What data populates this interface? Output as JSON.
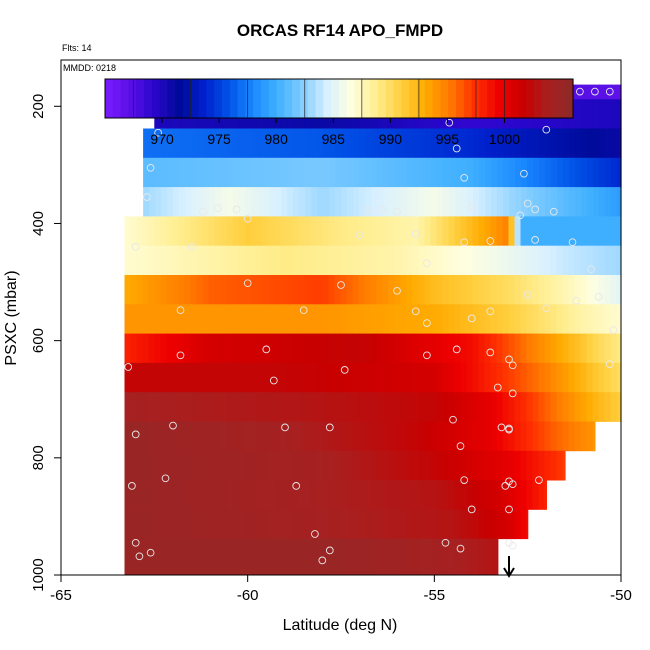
{
  "chart_data": {
    "type": "heatmap",
    "title": "ORCAS RF14 APO_FMPD",
    "annotations": [
      "Flts: 14",
      "MMDD: 0218"
    ],
    "xlabel": "Latitude (deg N)",
    "ylabel": "PSXC (mbar)",
    "xlim": [
      -65,
      -50
    ],
    "ylim": [
      1000,
      100
    ],
    "x_ticks": [
      -65,
      -60,
      -55,
      -50
    ],
    "y_ticks": [
      200,
      400,
      600,
      800,
      1000
    ],
    "colorbar": {
      "min": 965,
      "max": 1006,
      "ticks": [
        970,
        975,
        980,
        985,
        990,
        995,
        1000
      ],
      "colors": [
        "#7a1cff",
        "#5a10e6",
        "#2a06cc",
        "#000a9a",
        "#0020cc",
        "#0050e6",
        "#1a88ff",
        "#40b0ff",
        "#80ccff",
        "#d8f0ff",
        "#ffffe0",
        "#ffee90",
        "#ffd040",
        "#ffaa00",
        "#ff7a00",
        "#ff3000",
        "#ee0000",
        "#c80000",
        "#a82020",
        "#8c2a2a"
      ]
    },
    "rows": [
      {
        "p_top": 163,
        "p_bot": 188,
        "lat_min": -62.0,
        "lat_max": -50.0,
        "values": [
          {
            "lat": -62.0,
            "v": 966
          },
          {
            "lat": -56.0,
            "v": 967
          },
          {
            "lat": -53.5,
            "v": 968
          },
          {
            "lat": -50.0,
            "v": 967
          }
        ]
      },
      {
        "p_top": 188,
        "p_bot": 238,
        "lat_min": -62.5,
        "lat_max": -50.0,
        "values": [
          {
            "lat": -62.5,
            "v": 970
          },
          {
            "lat": -58.0,
            "v": 971
          },
          {
            "lat": -54.0,
            "v": 969
          },
          {
            "lat": -50.0,
            "v": 970
          }
        ]
      },
      {
        "p_top": 238,
        "p_bot": 288,
        "lat_min": -62.8,
        "lat_max": -50.0,
        "values": [
          {
            "lat": -62.8,
            "v": 977
          },
          {
            "lat": -58.0,
            "v": 976
          },
          {
            "lat": -54.0,
            "v": 974
          },
          {
            "lat": -51.5,
            "v": 972
          },
          {
            "lat": -50.0,
            "v": 971
          }
        ]
      },
      {
        "p_top": 288,
        "p_bot": 338,
        "lat_min": -62.8,
        "lat_max": -50.0,
        "values": [
          {
            "lat": -62.8,
            "v": 981
          },
          {
            "lat": -58.0,
            "v": 982
          },
          {
            "lat": -54.0,
            "v": 980
          },
          {
            "lat": -52.0,
            "v": 977
          },
          {
            "lat": -50.0,
            "v": 974
          }
        ]
      },
      {
        "p_top": 338,
        "p_bot": 388,
        "lat_min": -62.8,
        "lat_max": -50.0,
        "values": [
          {
            "lat": -62.8,
            "v": 983
          },
          {
            "lat": -60.5,
            "v": 986
          },
          {
            "lat": -58.0,
            "v": 983
          },
          {
            "lat": -55.0,
            "v": 986
          },
          {
            "lat": -53.0,
            "v": 983
          },
          {
            "lat": -50.0,
            "v": 979
          }
        ]
      },
      {
        "p_top": 388,
        "p_bot": 438,
        "lat_min": -63.3,
        "lat_max": -50.0,
        "values": [
          {
            "lat": -63.3,
            "v": 987
          },
          {
            "lat": -60.0,
            "v": 991
          },
          {
            "lat": -57.5,
            "v": 989
          },
          {
            "lat": -55.5,
            "v": 988
          },
          {
            "lat": -53.0,
            "v": 995
          },
          {
            "lat": -52.7,
            "v": 980
          },
          {
            "lat": -50.0,
            "v": 980
          }
        ]
      },
      {
        "p_top": 438,
        "p_bot": 488,
        "lat_min": -63.3,
        "lat_max": -50.0,
        "values": [
          {
            "lat": -63.3,
            "v": 987
          },
          {
            "lat": -59.0,
            "v": 989
          },
          {
            "lat": -56.0,
            "v": 988
          },
          {
            "lat": -53.5,
            "v": 986
          },
          {
            "lat": -51.5,
            "v": 984
          },
          {
            "lat": -50.0,
            "v": 983
          }
        ]
      },
      {
        "p_top": 488,
        "p_bot": 538,
        "lat_min": -63.3,
        "lat_max": -50.0,
        "values": [
          {
            "lat": -63.3,
            "v": 993
          },
          {
            "lat": -61.0,
            "v": 996
          },
          {
            "lat": -58.0,
            "v": 997
          },
          {
            "lat": -55.0,
            "v": 992
          },
          {
            "lat": -53.0,
            "v": 990
          },
          {
            "lat": -51.0,
            "v": 987
          },
          {
            "lat": -50.0,
            "v": 985
          }
        ]
      },
      {
        "p_top": 538,
        "p_bot": 588,
        "lat_min": -63.3,
        "lat_max": -50.0,
        "values": [
          {
            "lat": -63.3,
            "v": 994
          },
          {
            "lat": -58.0,
            "v": 994
          },
          {
            "lat": -55.0,
            "v": 993
          },
          {
            "lat": -53.0,
            "v": 991
          },
          {
            "lat": -51.0,
            "v": 988
          },
          {
            "lat": -50.0,
            "v": 987
          }
        ]
      },
      {
        "p_top": 588,
        "p_bot": 638,
        "lat_min": -63.3,
        "lat_max": -50.0,
        "values": [
          {
            "lat": -63.3,
            "v": 998
          },
          {
            "lat": -61.0,
            "v": 1001
          },
          {
            "lat": -57.0,
            "v": 1002
          },
          {
            "lat": -54.0,
            "v": 999
          },
          {
            "lat": -52.0,
            "v": 994
          },
          {
            "lat": -50.5,
            "v": 990
          },
          {
            "lat": -50.0,
            "v": 989
          }
        ]
      },
      {
        "p_top": 638,
        "p_bot": 688,
        "lat_min": -63.3,
        "lat_max": -50.0,
        "values": [
          {
            "lat": -63.3,
            "v": 1002
          },
          {
            "lat": -59.0,
            "v": 1002
          },
          {
            "lat": -55.0,
            "v": 1001
          },
          {
            "lat": -53.5,
            "v": 998
          },
          {
            "lat": -52.0,
            "v": 995
          },
          {
            "lat": -50.5,
            "v": 991
          },
          {
            "lat": -50.0,
            "v": 990
          }
        ]
      },
      {
        "p_top": 688,
        "p_bot": 738,
        "lat_min": -63.3,
        "lat_max": -50.0,
        "values": [
          {
            "lat": -63.3,
            "v": 1004
          },
          {
            "lat": -58.0,
            "v": 1003
          },
          {
            "lat": -55.0,
            "v": 1002
          },
          {
            "lat": -53.5,
            "v": 1000
          },
          {
            "lat": -52.0,
            "v": 996
          },
          {
            "lat": -50.5,
            "v": 992
          },
          {
            "lat": -50.0,
            "v": 991
          }
        ]
      },
      {
        "p_top": 738,
        "p_bot": 788,
        "lat_min": -63.3,
        "lat_max": -50.7,
        "values": [
          {
            "lat": -63.3,
            "v": 1005
          },
          {
            "lat": -59.0,
            "v": 1004
          },
          {
            "lat": -55.5,
            "v": 1002
          },
          {
            "lat": -53.5,
            "v": 1000
          },
          {
            "lat": -51.8,
            "v": 996
          },
          {
            "lat": -50.7,
            "v": 994
          }
        ]
      },
      {
        "p_top": 788,
        "p_bot": 838,
        "lat_min": -63.3,
        "lat_max": -51.5,
        "values": [
          {
            "lat": -63.3,
            "v": 1005
          },
          {
            "lat": -58.0,
            "v": 1004
          },
          {
            "lat": -55.0,
            "v": 1002
          },
          {
            "lat": -53.0,
            "v": 1000
          },
          {
            "lat": -51.5,
            "v": 997
          }
        ]
      },
      {
        "p_top": 838,
        "p_bot": 888,
        "lat_min": -63.3,
        "lat_max": -52.0,
        "values": [
          {
            "lat": -63.3,
            "v": 1005
          },
          {
            "lat": -58.5,
            "v": 1004
          },
          {
            "lat": -55.0,
            "v": 1003
          },
          {
            "lat": -53.2,
            "v": 1001
          },
          {
            "lat": -52.0,
            "v": 998
          }
        ]
      },
      {
        "p_top": 888,
        "p_bot": 938,
        "lat_min": -63.3,
        "lat_max": -52.5,
        "values": [
          {
            "lat": -63.3,
            "v": 1005
          },
          {
            "lat": -58.0,
            "v": 1004
          },
          {
            "lat": -54.5,
            "v": 1003
          },
          {
            "lat": -53.0,
            "v": 1001
          },
          {
            "lat": -52.5,
            "v": 999
          }
        ]
      },
      {
        "p_top": 938,
        "p_bot": 988,
        "lat_min": -63.3,
        "lat_max": -53.3,
        "values": [
          {
            "lat": -63.3,
            "v": 1005
          },
          {
            "lat": -58.0,
            "v": 1005
          },
          {
            "lat": -54.5,
            "v": 1004
          },
          {
            "lat": -53.3,
            "v": 1003
          }
        ]
      },
      {
        "p_top": 988,
        "p_bot": 1012,
        "lat_min": -63.3,
        "lat_max": -53.3,
        "values": [
          {
            "lat": -63.3,
            "v": 1005
          },
          {
            "lat": -58.0,
            "v": 1005
          },
          {
            "lat": -54.5,
            "v": 1004
          },
          {
            "lat": -53.3,
            "v": 1003
          }
        ]
      }
    ],
    "points": [
      [
        -62.0,
        175
      ],
      [
        -61.5,
        175
      ],
      [
        -61.0,
        175
      ],
      [
        -60.5,
        175
      ],
      [
        -59.8,
        175
      ],
      [
        -59.0,
        175
      ],
      [
        -58.2,
        175
      ],
      [
        -57.5,
        175
      ],
      [
        -57.0,
        175
      ],
      [
        -56.6,
        175
      ],
      [
        -56.2,
        175
      ],
      [
        -55.8,
        175
      ],
      [
        -55.3,
        175
      ],
      [
        -54.9,
        188
      ],
      [
        -54.7,
        200
      ],
      [
        -54.6,
        228
      ],
      [
        -52.6,
        185
      ],
      [
        -52.3,
        175
      ],
      [
        -51.9,
        175
      ],
      [
        -51.5,
        175
      ],
      [
        -51.1,
        175
      ],
      [
        -50.7,
        175
      ],
      [
        -50.3,
        175
      ],
      [
        -62.4,
        245
      ],
      [
        -52.0,
        240
      ],
      [
        -54.4,
        272
      ],
      [
        -62.6,
        305
      ],
      [
        -54.2,
        322
      ],
      [
        -52.6,
        315
      ],
      [
        -62.7,
        355
      ],
      [
        -52.5,
        366
      ],
      [
        -61.2,
        380
      ],
      [
        -60.8,
        374
      ],
      [
        -60.3,
        376
      ],
      [
        -60.0,
        392
      ],
      [
        -56.8,
        378
      ],
      [
        -56.4,
        376
      ],
      [
        -56.0,
        380
      ],
      [
        -54.0,
        372
      ],
      [
        -52.7,
        386
      ],
      [
        -52.3,
        376
      ],
      [
        -51.8,
        380
      ],
      [
        -63.0,
        440
      ],
      [
        -61.5,
        440
      ],
      [
        -57.0,
        420
      ],
      [
        -55.5,
        418
      ],
      [
        -55.2,
        468
      ],
      [
        -54.2,
        432
      ],
      [
        -53.5,
        430
      ],
      [
        -52.3,
        428
      ],
      [
        -51.3,
        432
      ],
      [
        -50.8,
        478
      ],
      [
        -61.8,
        548
      ],
      [
        -60.0,
        502
      ],
      [
        -58.5,
        548
      ],
      [
        -57.5,
        505
      ],
      [
        -56.0,
        515
      ],
      [
        -55.5,
        550
      ],
      [
        -55.2,
        570
      ],
      [
        -54.0,
        562
      ],
      [
        -53.5,
        550
      ],
      [
        -52.5,
        522
      ],
      [
        -52.0,
        545
      ],
      [
        -51.2,
        532
      ],
      [
        -50.6,
        525
      ],
      [
        -50.2,
        582
      ],
      [
        -63.2,
        645
      ],
      [
        -61.8,
        625
      ],
      [
        -59.5,
        615
      ],
      [
        -59.3,
        668
      ],
      [
        -57.4,
        650
      ],
      [
        -55.2,
        625
      ],
      [
        -54.4,
        615
      ],
      [
        -53.5,
        620
      ],
      [
        -53.0,
        632
      ],
      [
        -52.9,
        642
      ],
      [
        -53.3,
        680
      ],
      [
        -52.9,
        690
      ],
      [
        -50.3,
        640
      ],
      [
        -62.0,
        745
      ],
      [
        -63.0,
        760
      ],
      [
        -59.0,
        748
      ],
      [
        -57.8,
        748
      ],
      [
        -54.5,
        735
      ],
      [
        -53.2,
        748
      ],
      [
        -53.0,
        752
      ],
      [
        -53.0,
        750
      ],
      [
        -54.3,
        780
      ],
      [
        -52.2,
        838
      ],
      [
        -62.2,
        835
      ],
      [
        -63.1,
        848
      ],
      [
        -58.7,
        848
      ],
      [
        -54.2,
        838
      ],
      [
        -53.1,
        848
      ],
      [
        -53.0,
        840
      ],
      [
        -52.9,
        845
      ],
      [
        -53.0,
        888
      ],
      [
        -54.0,
        888
      ],
      [
        -63.0,
        945
      ],
      [
        -62.6,
        962
      ],
      [
        -62.9,
        968
      ],
      [
        -58.2,
        930
      ],
      [
        -58.0,
        975
      ],
      [
        -57.8,
        958
      ],
      [
        -54.7,
        945
      ],
      [
        -54.3,
        955
      ],
      [
        -53.0,
        945
      ],
      [
        -52.9,
        950
      ]
    ],
    "arrow_lat": -53.0
  }
}
